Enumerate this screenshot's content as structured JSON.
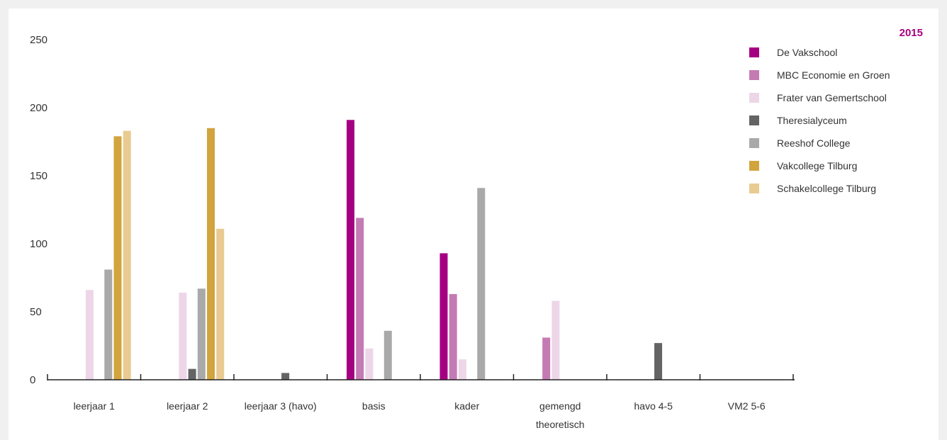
{
  "chart_data": {
    "type": "bar",
    "year": "2015",
    "ylim": [
      0,
      250
    ],
    "yticks": [
      0,
      50,
      100,
      150,
      200,
      250
    ],
    "categories": [
      [
        "leerjaar 1"
      ],
      [
        "leerjaar 2"
      ],
      [
        "leerjaar 3 (havo)"
      ],
      [
        "basis"
      ],
      [
        "kader"
      ],
      [
        "gemengd",
        "theoretisch"
      ],
      [
        "havo 4-5"
      ],
      [
        "VM2 5-6"
      ]
    ],
    "series": [
      {
        "name": "De Vakschool",
        "color": "#a50082",
        "values": [
          0,
          0,
          0,
          191,
          93,
          0,
          0,
          0
        ]
      },
      {
        "name": "MBC Economie en Groen",
        "color": "#c47bb4",
        "values": [
          0,
          0,
          0,
          119,
          63,
          31,
          0,
          0
        ]
      },
      {
        "name": "Frater van Gemertschool",
        "color": "#ecd6e8",
        "values": [
          66,
          64,
          0,
          23,
          15,
          58,
          0,
          0
        ]
      },
      {
        "name": "Theresialyceum",
        "color": "#646464",
        "values": [
          0,
          8,
          5,
          0,
          0,
          0,
          27,
          0
        ]
      },
      {
        "name": "Reeshof College",
        "color": "#a9a9a9",
        "values": [
          81,
          67,
          0,
          36,
          141,
          0,
          0,
          0
        ]
      },
      {
        "name": "Vakcollege Tilburg",
        "color": "#d2a43e",
        "values": [
          179,
          185,
          0,
          0,
          0,
          0,
          0,
          0
        ]
      },
      {
        "name": "Schakelcollege Tilburg",
        "color": "#e9cb91",
        "values": [
          183,
          111,
          0,
          0,
          0,
          0,
          0,
          0
        ]
      }
    ],
    "year_color": "#a50082",
    "axis_color": "#222222",
    "legend_position": "top-right"
  }
}
